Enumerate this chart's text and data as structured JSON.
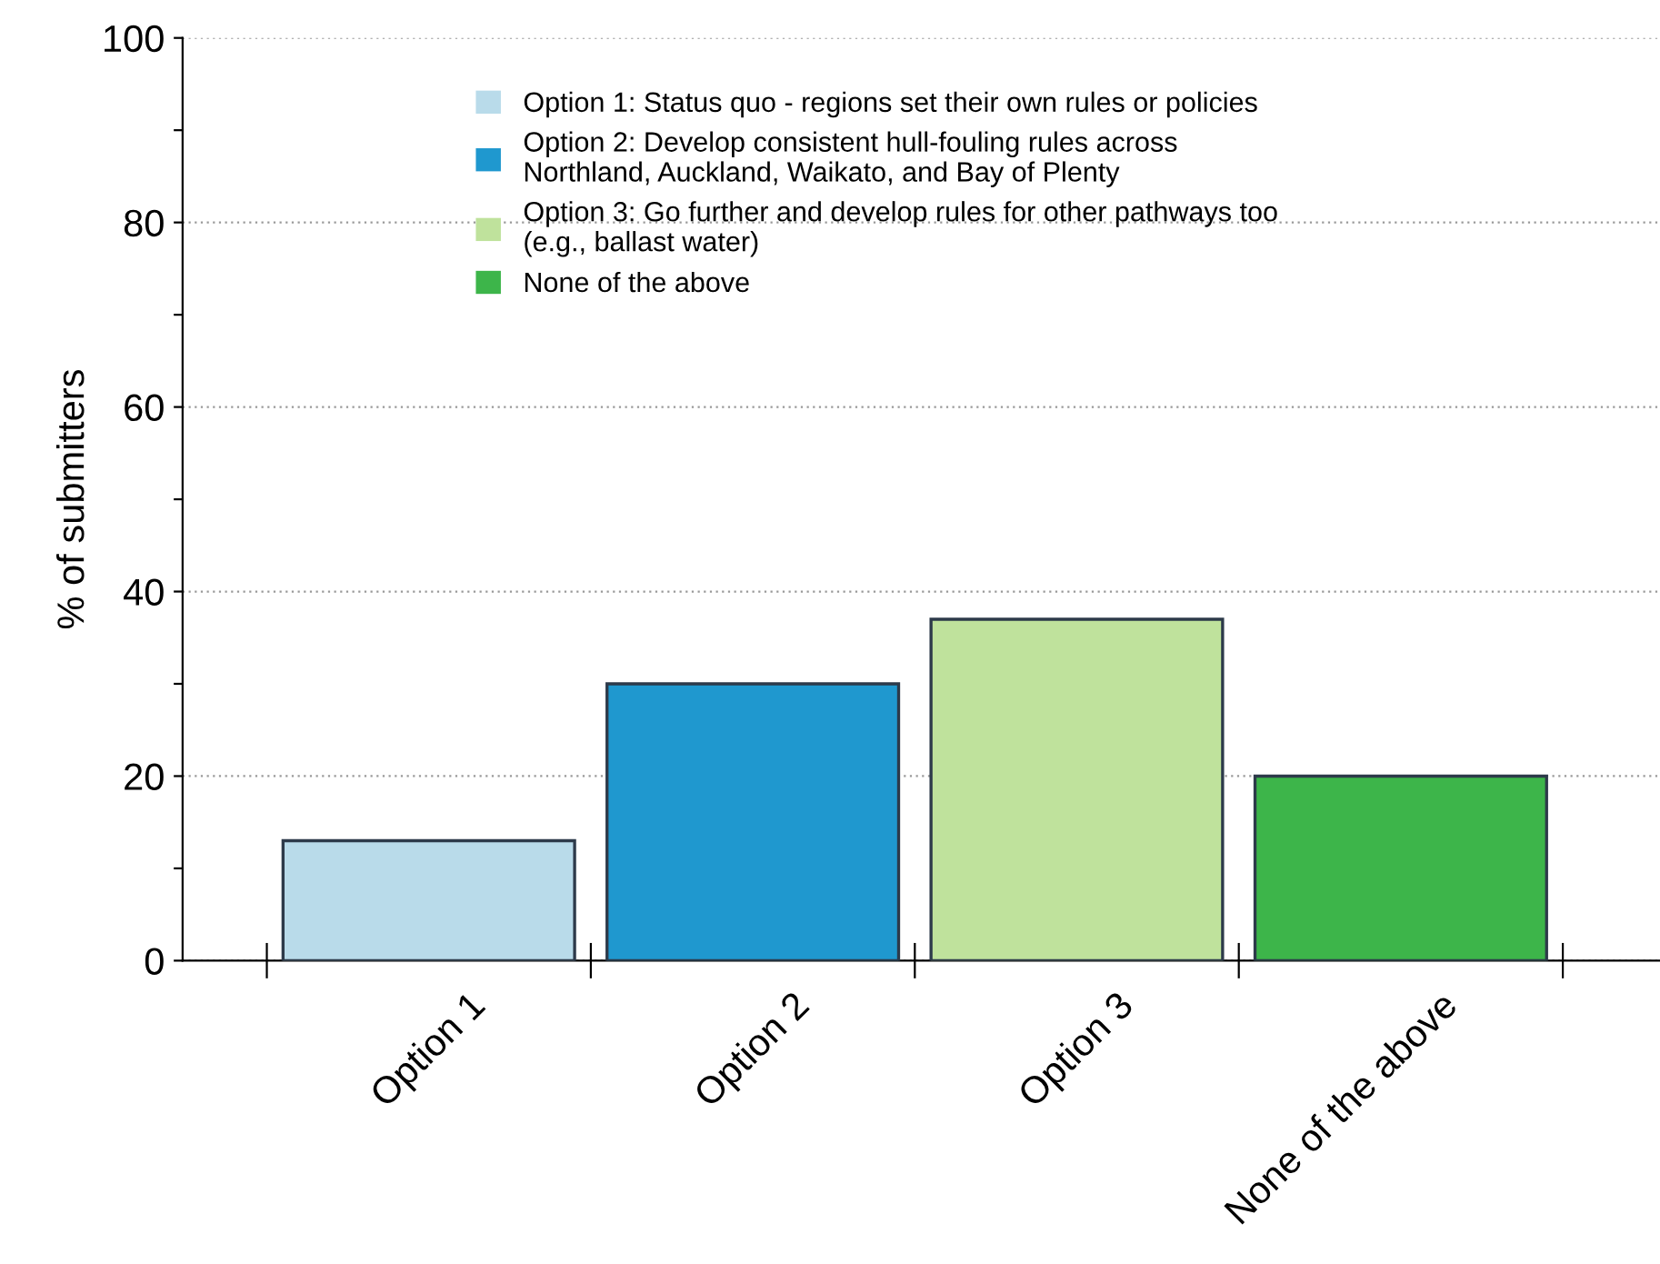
{
  "chart_data": {
    "type": "bar",
    "ylabel": "% of submitters",
    "stacked": true,
    "categories": [
      "Option 1",
      "Option 2",
      "Option 3",
      "None of the above"
    ],
    "series": [
      {
        "name": "Option 1: Status quo - regions set their own rules or policies",
        "color": "#b9dbea",
        "values": [
          13,
          null,
          null,
          null
        ]
      },
      {
        "name": "Option 2: Develop consistent hull-fouling rules across Northland, Auckland, Waikato, and Bay of Plenty",
        "color": "#1f98cf",
        "values": [
          null,
          30,
          null,
          null
        ]
      },
      {
        "name": "Option 3: Go further and develop rules for other pathways too (e.g., ballast water)",
        "color": "#bfe29c",
        "values": [
          null,
          null,
          37,
          null
        ]
      },
      {
        "name": "None of the above",
        "color": "#3db54a",
        "values": [
          null,
          null,
          null,
          20
        ]
      }
    ],
    "ylim": [
      0,
      100
    ],
    "yticks": [
      0,
      {
        "value": 10,
        "label": null
      },
      20,
      {
        "value": 30,
        "label": null
      },
      40,
      {
        "value": 50,
        "label": null
      },
      60,
      {
        "value": 70,
        "label": null
      },
      80,
      {
        "value": 90,
        "label": null
      },
      100
    ],
    "grid": "y",
    "legend": "top"
  }
}
